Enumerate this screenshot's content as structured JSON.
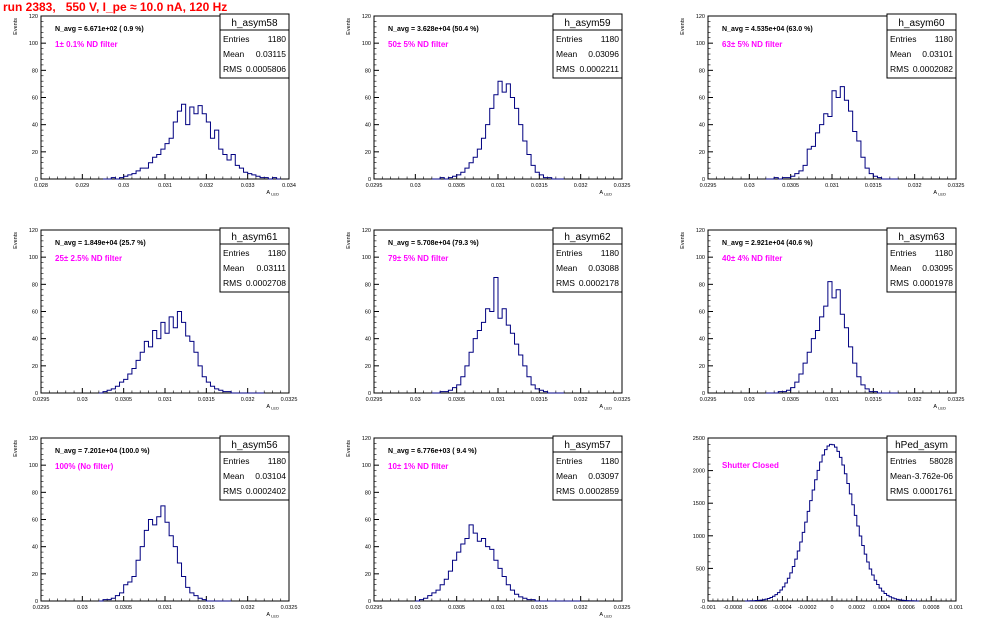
{
  "page": {
    "title": "run 2383,   550 V, I_pe ≈ 10.0 nA, 120 Hz"
  },
  "colors": {
    "histogram": "#000080",
    "annotation": "#ff00ff",
    "title": "#ff0000",
    "axis": "#000000",
    "grid": "#b4b4b4"
  },
  "chart_data": [
    {
      "type": "histogram",
      "name": "h_asym58",
      "ylabel": "Events",
      "xlabel": "A_LED",
      "nav": "N_avg = 6.671e+02 ( 0.9 %)",
      "filter": "1± 0.1% ND filter",
      "stats": {
        "entries": "1180",
        "mean": "0.03115",
        "rms": "0.0005806"
      },
      "xlim": [
        0.028,
        0.034
      ],
      "ylim": [
        0,
        120
      ],
      "xticks": [
        "0.028",
        "0.029",
        "0.03",
        "0.031",
        "0.032",
        "0.033",
        "0.034"
      ],
      "yticks": [
        "0",
        "20",
        "40",
        "60",
        "80",
        "100",
        "120"
      ],
      "xmin": 0.0295,
      "xmax": 0.0328,
      "step": 0.0001,
      "values": [
        0,
        0,
        1,
        0,
        1,
        2,
        3,
        4,
        6,
        8,
        8,
        12,
        16,
        18,
        22,
        26,
        30,
        42,
        50,
        55,
        40,
        53,
        48,
        54,
        48,
        42,
        30,
        36,
        22,
        18,
        14,
        18,
        10,
        8,
        5,
        4,
        3,
        2,
        1,
        1,
        0,
        1,
        0
      ]
    },
    {
      "type": "histogram",
      "name": "h_asym59",
      "ylabel": "Events",
      "xlabel": "A_LED",
      "nav": "N_avg = 3.628e+04 (50.4 %)",
      "filter": "50± 5% ND filter",
      "stats": {
        "entries": "1180",
        "mean": "0.03096",
        "rms": "0.0002211"
      },
      "xlim": [
        0.0295,
        0.0325
      ],
      "ylim": [
        0,
        120
      ],
      "xticks": [
        "0.0295",
        "0.03",
        "0.0305",
        "0.031",
        "0.0315",
        "0.032",
        "0.0325"
      ],
      "yticks": [
        "0",
        "20",
        "40",
        "60",
        "80",
        "100",
        "120"
      ],
      "xmin": 0.0302,
      "xmax": 0.0318,
      "step": 5e-05,
      "values": [
        0,
        0,
        1,
        0,
        1,
        2,
        3,
        5,
        8,
        12,
        16,
        22,
        30,
        40,
        52,
        62,
        72,
        64,
        70,
        60,
        52,
        40,
        28,
        18,
        10,
        5,
        3,
        1,
        1,
        0,
        0,
        0
      ]
    },
    {
      "type": "histogram",
      "name": "h_asym60",
      "ylabel": "Events",
      "xlabel": "A_LED",
      "nav": "N_avg = 4.535e+04 (63.0 %)",
      "filter": "63± 5% ND filter",
      "stats": {
        "entries": "1180",
        "mean": "0.03101",
        "rms": "0.0002082"
      },
      "xlim": [
        0.0295,
        0.0325
      ],
      "ylim": [
        0,
        120
      ],
      "xticks": [
        "0.0295",
        "0.03",
        "0.0305",
        "0.031",
        "0.0315",
        "0.032",
        "0.0325"
      ],
      "yticks": [
        "0",
        "20",
        "40",
        "60",
        "80",
        "100",
        "120"
      ],
      "xmin": 0.0302,
      "xmax": 0.0318,
      "step": 5e-05,
      "values": [
        0,
        0,
        1,
        0,
        1,
        1,
        2,
        4,
        6,
        10,
        22,
        24,
        34,
        40,
        48,
        46,
        65,
        60,
        68,
        58,
        50,
        35,
        28,
        16,
        8,
        4,
        2,
        1,
        0,
        0,
        0,
        0
      ]
    },
    {
      "type": "histogram",
      "name": "h_asym61",
      "ylabel": "Events",
      "xlabel": "A_LED",
      "nav": "N_avg = 1.849e+04 (25.7 %)",
      "filter": "25± 2.5% ND filter",
      "stats": {
        "entries": "1180",
        "mean": "0.03111",
        "rms": "0.0002708"
      },
      "xlim": [
        0.0295,
        0.0325
      ],
      "ylim": [
        0,
        120
      ],
      "xticks": [
        "0.0295",
        "0.03",
        "0.0305",
        "0.031",
        "0.0315",
        "0.032",
        "0.0325"
      ],
      "yticks": [
        "0",
        "20",
        "40",
        "60",
        "80",
        "100",
        "120"
      ],
      "xmin": 0.0302,
      "xmax": 0.0322,
      "step": 5e-05,
      "values": [
        0,
        1,
        2,
        3,
        5,
        8,
        10,
        14,
        18,
        24,
        30,
        38,
        34,
        46,
        40,
        52,
        44,
        56,
        48,
        60,
        52,
        42,
        38,
        30,
        20,
        12,
        8,
        5,
        3,
        2,
        1,
        1,
        0,
        0,
        0,
        0,
        0,
        0,
        0,
        0
      ]
    },
    {
      "type": "histogram",
      "name": "h_asym62",
      "ylabel": "Events",
      "xlabel": "A_LED",
      "nav": "N_avg = 5.708e+04 (79.3 %)",
      "filter": "79± 5% ND filter",
      "stats": {
        "entries": "1180",
        "mean": "0.03088",
        "rms": "0.0002178"
      },
      "xlim": [
        0.0295,
        0.0325
      ],
      "ylim": [
        0,
        120
      ],
      "xticks": [
        "0.0295",
        "0.03",
        "0.0305",
        "0.031",
        "0.0315",
        "0.032",
        "0.0325"
      ],
      "yticks": [
        "0",
        "20",
        "40",
        "60",
        "80",
        "100",
        "120"
      ],
      "xmin": 0.0302,
      "xmax": 0.0318,
      "step": 5e-05,
      "values": [
        0,
        0,
        1,
        1,
        2,
        4,
        6,
        12,
        20,
        30,
        40,
        46,
        52,
        62,
        60,
        85,
        55,
        62,
        50,
        44,
        36,
        28,
        20,
        12,
        6,
        3,
        2,
        1,
        0,
        0,
        0,
        0
      ]
    },
    {
      "type": "histogram",
      "name": "h_asym63",
      "ylabel": "Events",
      "xlabel": "A_LED",
      "nav": "N_avg = 2.921e+04 (40.6 %)",
      "filter": "40± 4% ND filter",
      "stats": {
        "entries": "1180",
        "mean": "0.03095",
        "rms": "0.0001978"
      },
      "xlim": [
        0.0295,
        0.0325
      ],
      "ylim": [
        0,
        120
      ],
      "xticks": [
        "0.0295",
        "0.03",
        "0.0305",
        "0.031",
        "0.0315",
        "0.032",
        "0.0325"
      ],
      "yticks": [
        "0",
        "20",
        "40",
        "60",
        "80",
        "100",
        "120"
      ],
      "xmin": 0.0302,
      "xmax": 0.0318,
      "step": 5e-05,
      "values": [
        0,
        0,
        0,
        1,
        1,
        2,
        4,
        8,
        14,
        22,
        30,
        40,
        46,
        56,
        64,
        82,
        70,
        76,
        58,
        48,
        34,
        22,
        12,
        6,
        3,
        1,
        1,
        0,
        0,
        0,
        0,
        0
      ]
    },
    {
      "type": "histogram",
      "name": "h_asym56",
      "ylabel": "Events",
      "xlabel": "A_LED",
      "nav": "N_avg = 7.201e+04 (100.0 %)",
      "filter": "100% (No filter)",
      "stats": {
        "entries": "1180",
        "mean": "0.03104",
        "rms": "0.0002402"
      },
      "xlim": [
        0.0295,
        0.0325
      ],
      "ylim": [
        0,
        120
      ],
      "xticks": [
        "0.0295",
        "0.03",
        "0.0305",
        "0.031",
        "0.0315",
        "0.032",
        "0.0325"
      ],
      "yticks": [
        "0",
        "20",
        "40",
        "60",
        "80",
        "100",
        "120"
      ],
      "xmin": 0.0302,
      "xmax": 0.0318,
      "step": 5e-05,
      "values": [
        0,
        1,
        1,
        2,
        4,
        6,
        12,
        14,
        18,
        30,
        40,
        52,
        60,
        56,
        62,
        70,
        58,
        48,
        40,
        28,
        18,
        10,
        6,
        4,
        2,
        1,
        0,
        0,
        0,
        0,
        0,
        0
      ]
    },
    {
      "type": "histogram",
      "name": "h_asym57",
      "ylabel": "Events",
      "xlabel": "A_LED",
      "nav": "N_avg = 6.776e+03 ( 9.4 %)",
      "filter": "10± 1% ND filter",
      "stats": {
        "entries": "1180",
        "mean": "0.03097",
        "rms": "0.0002859"
      },
      "xlim": [
        0.0295,
        0.0325
      ],
      "ylim": [
        0,
        120
      ],
      "xticks": [
        "0.0295",
        "0.03",
        "0.0305",
        "0.031",
        "0.0315",
        "0.032",
        "0.0325"
      ],
      "yticks": [
        "0",
        "20",
        "40",
        "60",
        "80",
        "100",
        "120"
      ],
      "xmin": 0.03,
      "xmax": 0.032,
      "step": 5e-05,
      "values": [
        0,
        1,
        2,
        4,
        6,
        8,
        12,
        16,
        22,
        30,
        36,
        42,
        46,
        56,
        50,
        44,
        46,
        40,
        38,
        30,
        24,
        18,
        12,
        8,
        5,
        3,
        2,
        1,
        1,
        0,
        0,
        0,
        0,
        0,
        0,
        0,
        0,
        0,
        0,
        0
      ]
    },
    {
      "type": "histogram",
      "name": "hPed_asym",
      "ylabel": "",
      "xlabel": "",
      "nav": "",
      "filter": "Shutter Closed",
      "stats": {
        "entries": "58028",
        "mean": "-3.762e-06",
        "rms": "0.0001761"
      },
      "xlim": [
        -0.001,
        0.001
      ],
      "ylim": [
        0,
        2600
      ],
      "xticks": [
        "-0.001",
        "-0.0008",
        "-0.0006",
        "-0.0004",
        "-0.0002",
        "0",
        "0.0002",
        "0.0004",
        "0.0006",
        "0.0008",
        "0.001"
      ],
      "yticks": [
        "0",
        "500",
        "1000",
        "1500",
        "2000",
        "2500"
      ],
      "gauss": {
        "amplitude": 2500,
        "mean": -3.762e-06,
        "sigma": 0.0001761
      },
      "xmin": -0.0007,
      "xmax": 0.0007,
      "step": 2e-05,
      "values": []
    }
  ]
}
